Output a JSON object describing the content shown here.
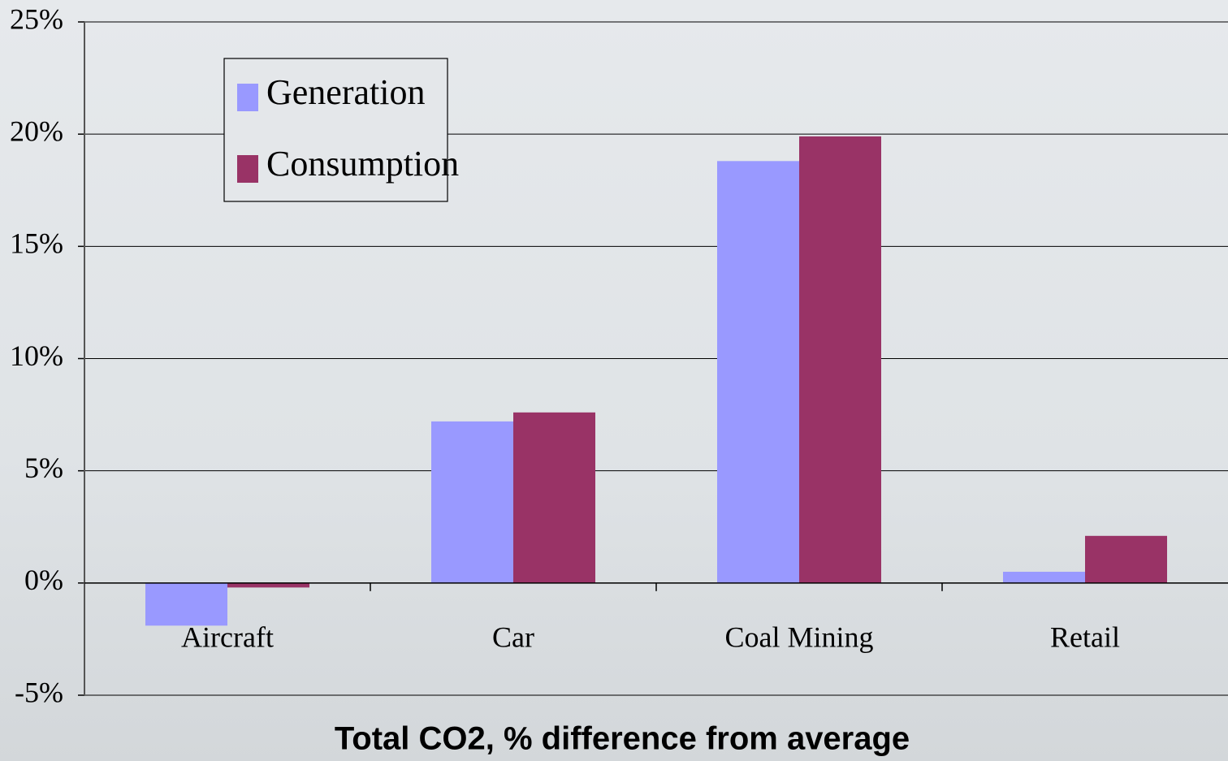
{
  "chart_data": {
    "type": "bar",
    "title": "Total CO2, % difference from average",
    "categories": [
      "Aircraft",
      "Car",
      "Coal Mining",
      "Retail"
    ],
    "series": [
      {
        "name": "Generation",
        "color": "#9999ff",
        "values": [
          -1.9,
          7.2,
          18.8,
          0.5
        ]
      },
      {
        "name": "Consumption",
        "color": "#993366",
        "values": [
          -0.2,
          7.6,
          19.9,
          2.1
        ]
      }
    ],
    "ylim": [
      -5,
      25
    ],
    "yticks": [
      {
        "value": -5,
        "label": "-5%"
      },
      {
        "value": 0,
        "label": "0%"
      },
      {
        "value": 5,
        "label": "5%"
      },
      {
        "value": 10,
        "label": "10%"
      },
      {
        "value": 15,
        "label": "15%"
      },
      {
        "value": 20,
        "label": "20%"
      },
      {
        "value": 25,
        "label": "25%"
      }
    ],
    "grid": true,
    "legend": "upper left"
  }
}
